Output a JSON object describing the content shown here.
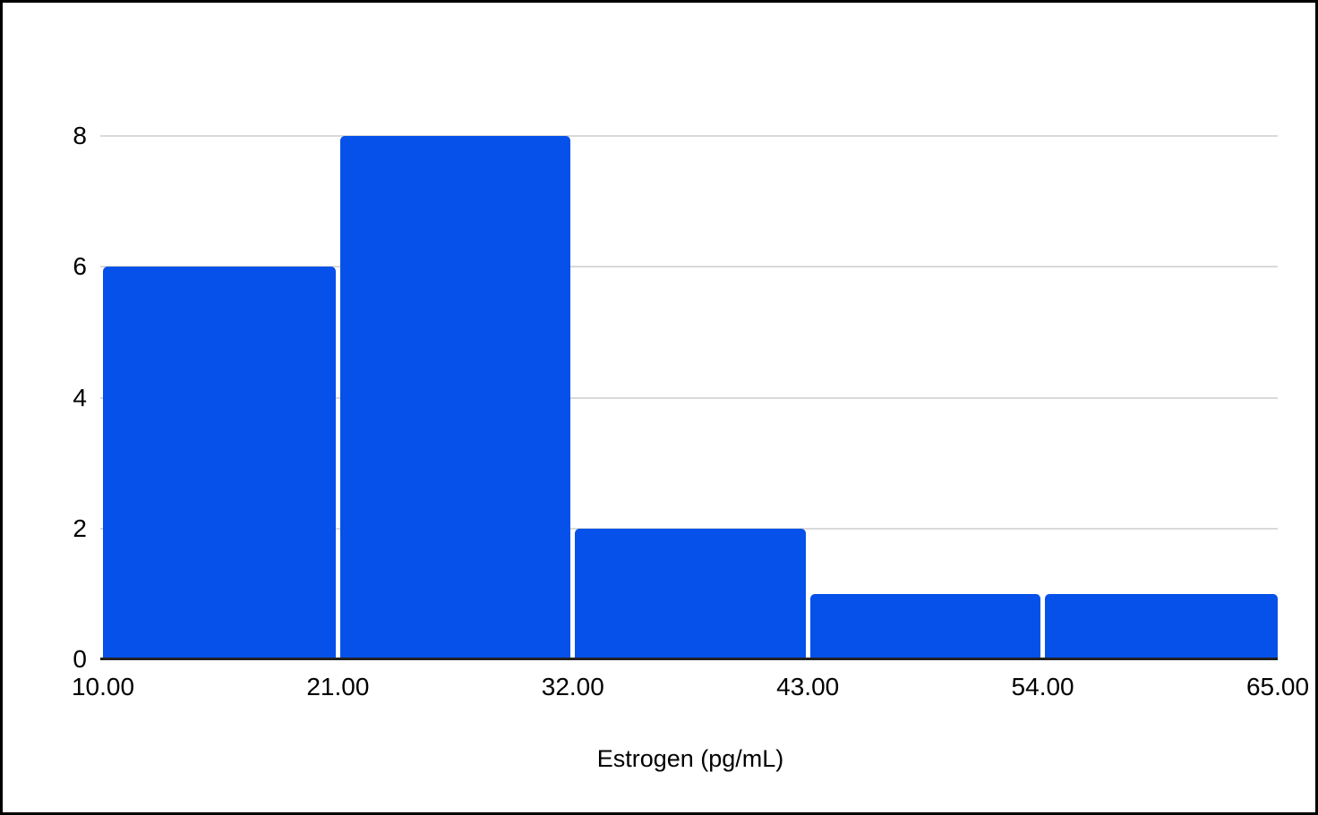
{
  "chart_data": {
    "type": "bar",
    "subtype": "histogram",
    "title": "",
    "xlabel": "Estrogen (pg/mL)",
    "ylabel": "",
    "bin_edges": [
      10,
      21,
      32,
      43,
      54,
      65
    ],
    "counts": [
      6,
      8,
      2,
      1,
      1
    ],
    "x_tick_labels": [
      "10.00",
      "21.00",
      "32.00",
      "43.00",
      "54.00",
      "65.00"
    ],
    "y_ticks": [
      0,
      2,
      4,
      6,
      8
    ],
    "gridline_values": [
      2,
      4,
      6,
      8
    ],
    "xlim": [
      10,
      65
    ],
    "ylim": [
      0,
      8
    ],
    "grid": "horizontal",
    "legend": "none",
    "bar_color": "#0551e9",
    "gridline_color": "#d9d9d9",
    "axis_line_color": "#212121",
    "text_color": "#000000",
    "frame_border_color": "#000000",
    "background_color": "#ffffff"
  }
}
